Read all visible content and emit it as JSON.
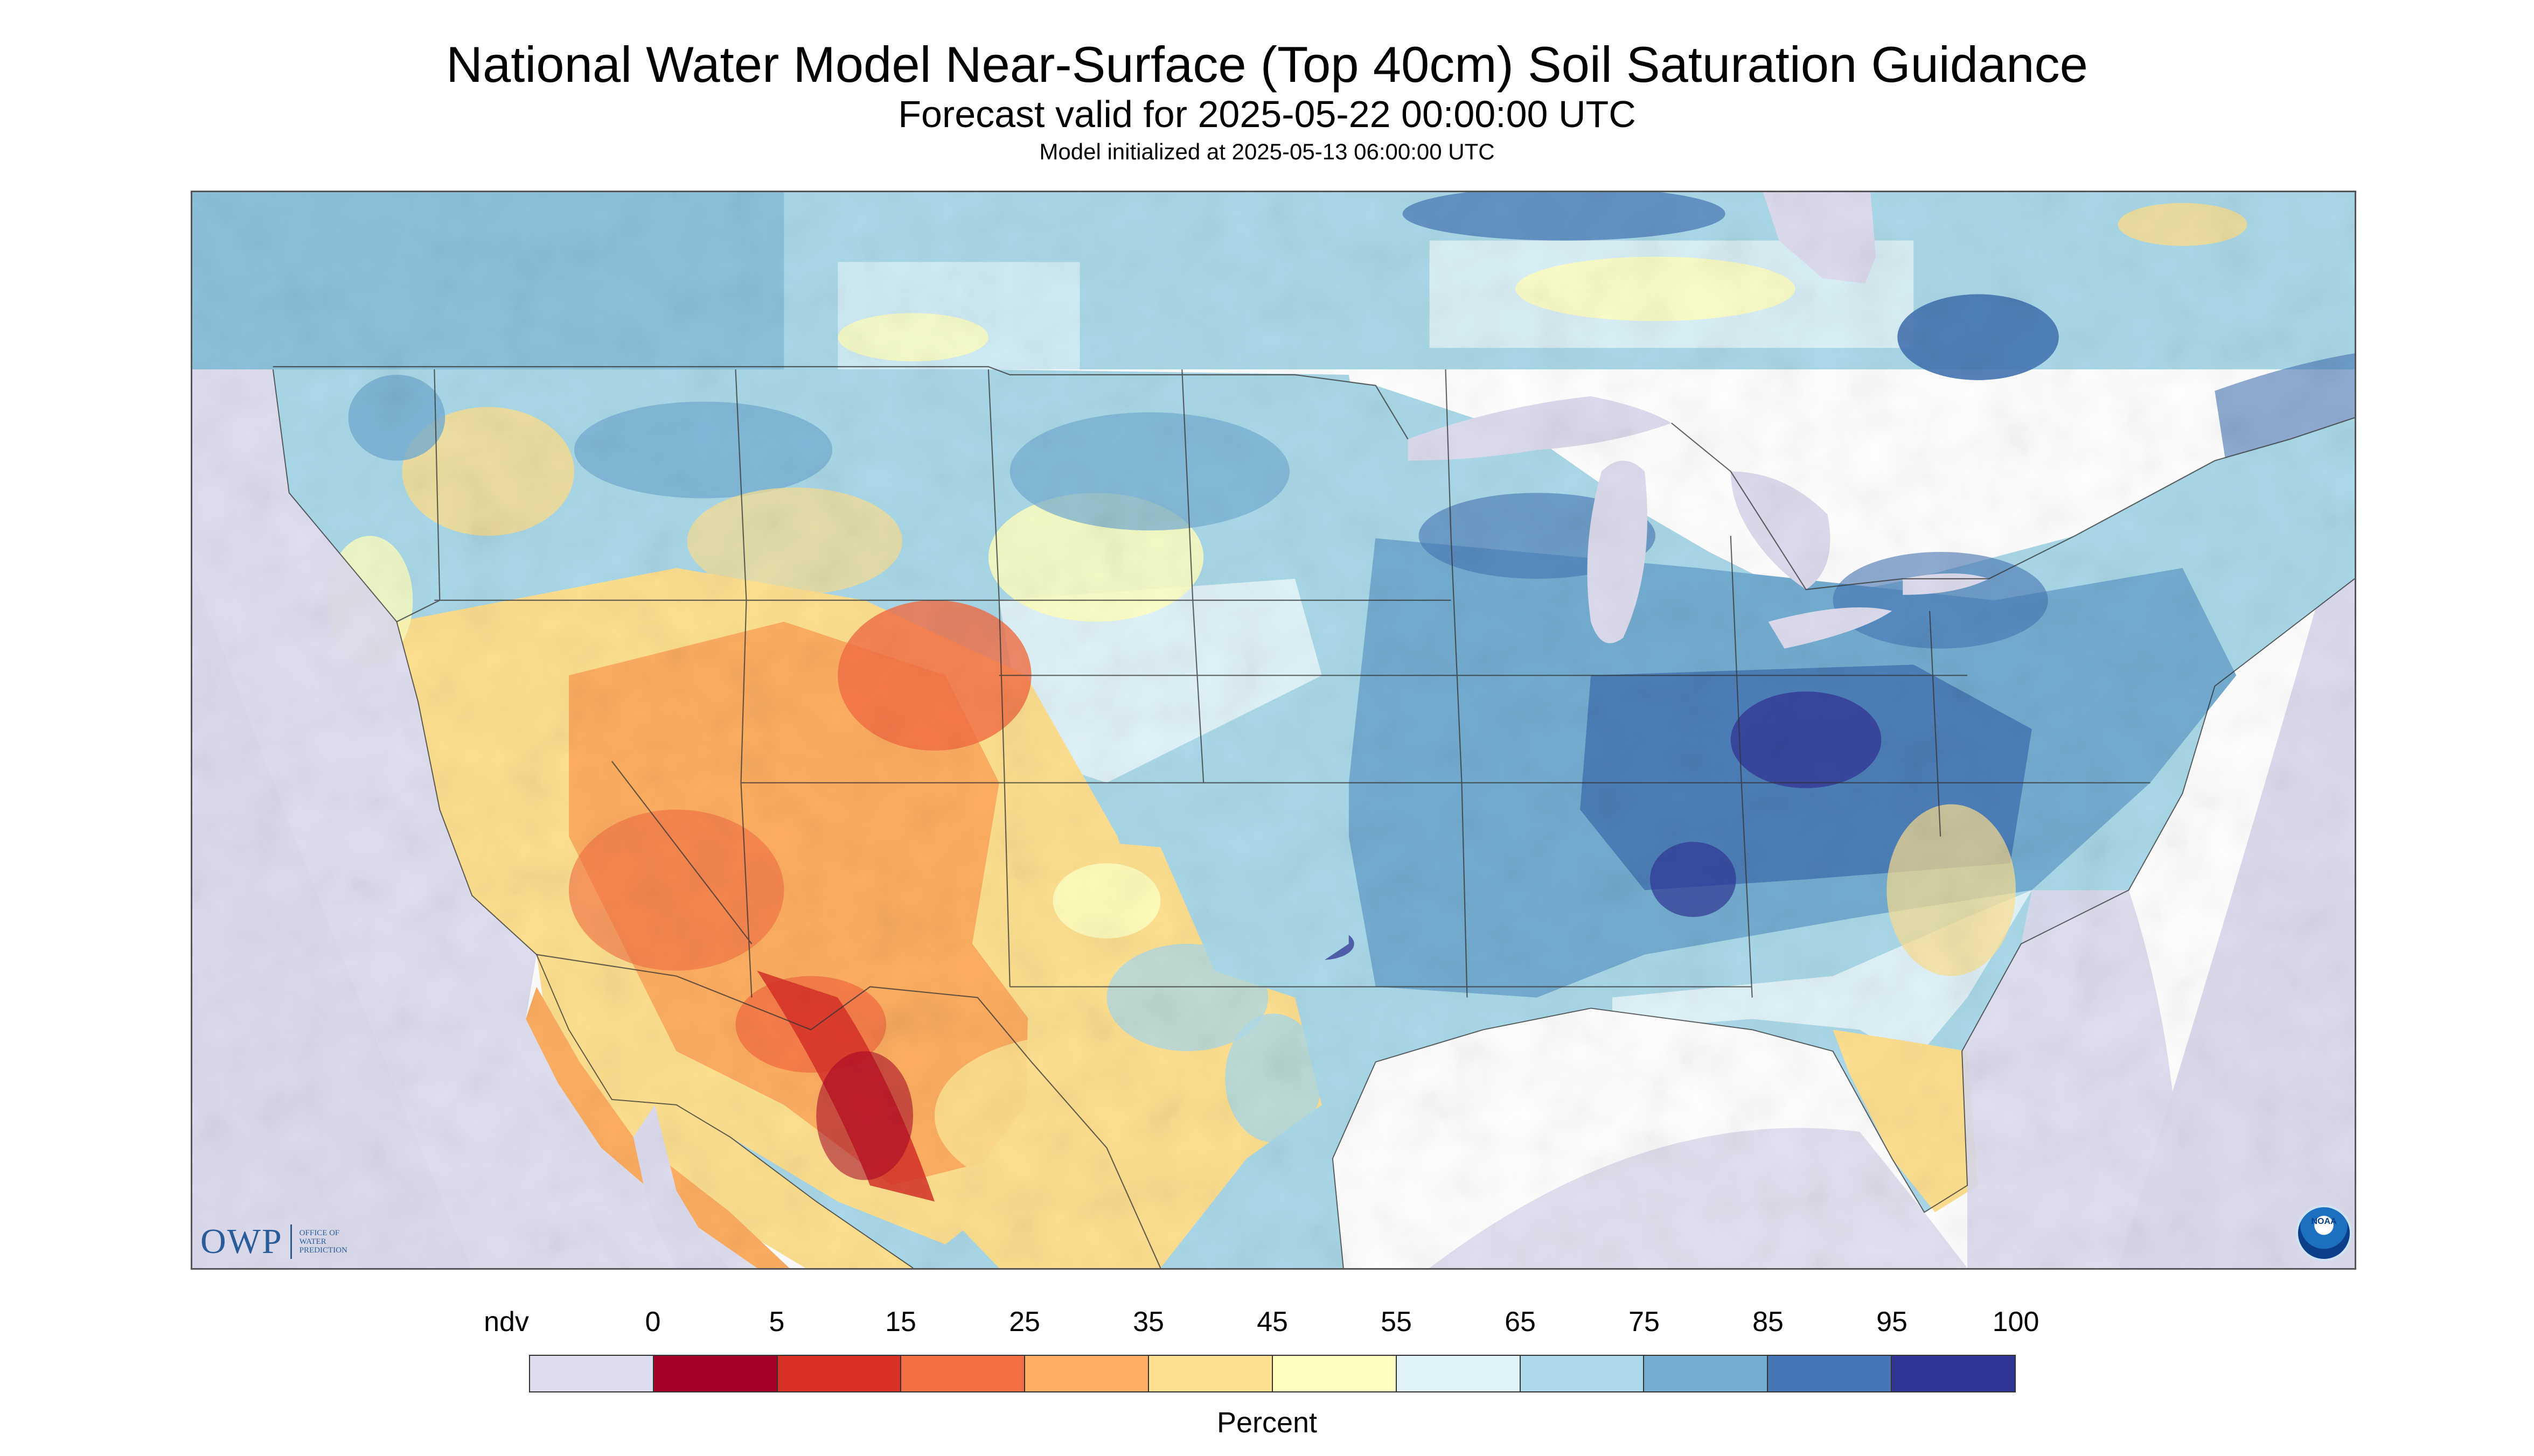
{
  "title": "National Water Model Near-Surface (Top 40cm) Soil Saturation Guidance",
  "subtitle": "Forecast valid for 2025-05-22 00:00:00 UTC",
  "init_line": "Model initialized at 2025-05-13 06:00:00 UTC",
  "logos": {
    "owp": {
      "text": "OWP",
      "subtext": [
        "OFFICE OF",
        "WATER",
        "PREDICTION"
      ]
    },
    "noaa": {
      "text": "NOAA"
    }
  },
  "legend": {
    "unit": "Percent",
    "labels": [
      "ndv",
      "0",
      "5",
      "15",
      "25",
      "35",
      "45",
      "55",
      "65",
      "75",
      "85",
      "95",
      "100"
    ],
    "colors": [
      "#dddcee",
      "#a50026",
      "#d73027",
      "#f46d43",
      "#fdae61",
      "#fee090",
      "#ffffbf",
      "#e0f3f8",
      "#abd9e9",
      "#74add1",
      "#4575b4",
      "#313695"
    ]
  },
  "map_colors": {
    "ndv": "#dddcee",
    "water": "#dddcee",
    "dry_deep": "#c0222c",
    "dry": "#f46d43",
    "moderate_dry": "#fdae61",
    "moderate": "#fee090",
    "mid": "#ffffbf",
    "wet_light": "#e0f3f8",
    "wet": "#abd9e9",
    "wetter": "#74add1",
    "wettest": "#4575b4",
    "saturated": "#313695",
    "boundary": "#333333"
  }
}
